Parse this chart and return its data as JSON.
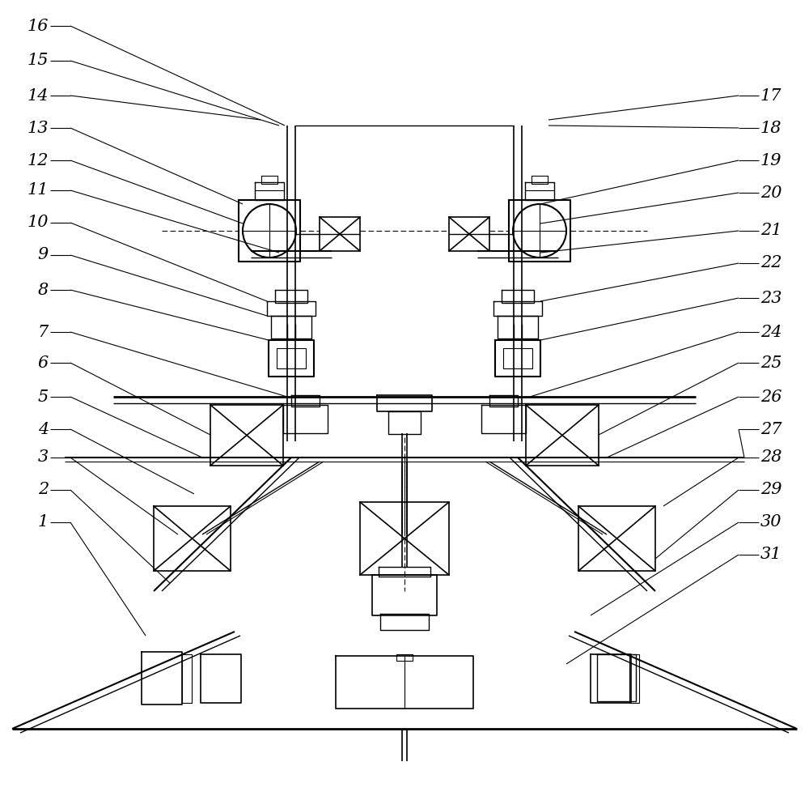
{
  "bg_color": "#ffffff",
  "line_color": "#000000",
  "fig_width": 10.0,
  "fig_height": 9.83,
  "dpi": 100
}
